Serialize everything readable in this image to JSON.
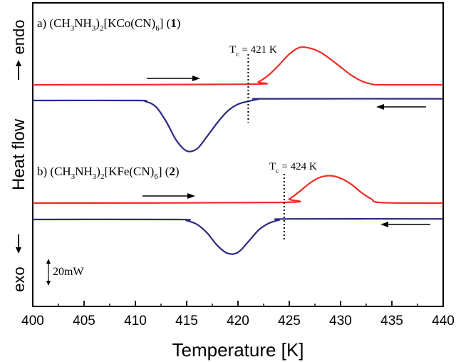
{
  "chart_data": {
    "type": "line",
    "xlabel": "Temperature [K]",
    "ylabel": "Heat flow",
    "xlim": [
      400,
      440
    ],
    "x_ticks": [
      "400",
      "405",
      "410",
      "415",
      "420",
      "425",
      "430",
      "435",
      "440"
    ],
    "endo_label": "endo",
    "exo_label": "exo",
    "scale_label": "20mW",
    "grid": false,
    "panels": [
      {
        "label_prefix": "a) (CH",
        "label_sub1": "3",
        "label_mid1": "NH",
        "label_sub2": "3",
        "label_mid2": ")",
        "label_sub3": "2",
        "label_mid3": "[KCo(CN)",
        "label_sub4": "6",
        "label_mid4": "] (",
        "label_bold": "1",
        "label_end": ")",
        "tc_prefix": "T",
        "tc_sub": "c",
        "tc_value": " = 421 K",
        "tc_x": 421,
        "heating": {
          "color": "#ee2d24",
          "baseline_mW": 0,
          "peak_x": 426.3,
          "peak_height_mW": 19,
          "onset_x": 421.5,
          "end_x": 433.5,
          "x": [
            400,
            421,
            422,
            423,
            424,
            425,
            426,
            427,
            428,
            429,
            430,
            431,
            432,
            433,
            434,
            440
          ],
          "y": [
            0,
            0.3,
            1.5,
            5,
            10,
            15.5,
            18.8,
            18.5,
            16.5,
            13,
            9,
            5,
            2,
            0.4,
            0,
            0
          ]
        },
        "cooling": {
          "color": "#2b2a85",
          "x": [
            400,
            410,
            411,
            412,
            413,
            414,
            415,
            416,
            417,
            418,
            419,
            420,
            421,
            422,
            423,
            440
          ],
          "y": [
            0,
            0,
            -0.5,
            -3,
            -10,
            -19,
            -24,
            -23,
            -17,
            -10.5,
            -5,
            -1.8,
            -0.4,
            0.6,
            0.8,
            0.8
          ]
        }
      },
      {
        "label_prefix": "b) (CH",
        "label_sub1": "3",
        "label_mid1": "NH",
        "label_sub2": "3",
        "label_mid2": ")",
        "label_sub3": "2",
        "label_mid3": "[KFe(CN)",
        "label_sub4": "6",
        "label_mid4": "] (",
        "label_bold": "2",
        "label_end": ")",
        "tc_prefix": "T",
        "tc_sub": "c",
        "tc_value": " = 424 K",
        "tc_x": 424.5,
        "heating": {
          "color": "#ee2d24",
          "x": [
            400,
            424,
            425,
            426,
            427,
            428,
            429,
            430,
            431,
            432,
            433,
            434,
            440
          ],
          "y": [
            0,
            0.4,
            2.5,
            7,
            12,
            15.5,
            16.5,
            15,
            11.5,
            6.5,
            2.5,
            0.3,
            0
          ]
        },
        "cooling": {
          "color": "#2b2a85",
          "x": [
            400,
            414,
            415,
            416,
            417,
            418,
            419,
            420,
            421,
            422,
            423,
            424,
            425,
            440
          ],
          "y": [
            0,
            0,
            -0.6,
            -2.5,
            -7,
            -13.5,
            -17.5,
            -17,
            -11.5,
            -5.5,
            -2,
            -0.3,
            0.3,
            0.3
          ]
        }
      }
    ]
  }
}
